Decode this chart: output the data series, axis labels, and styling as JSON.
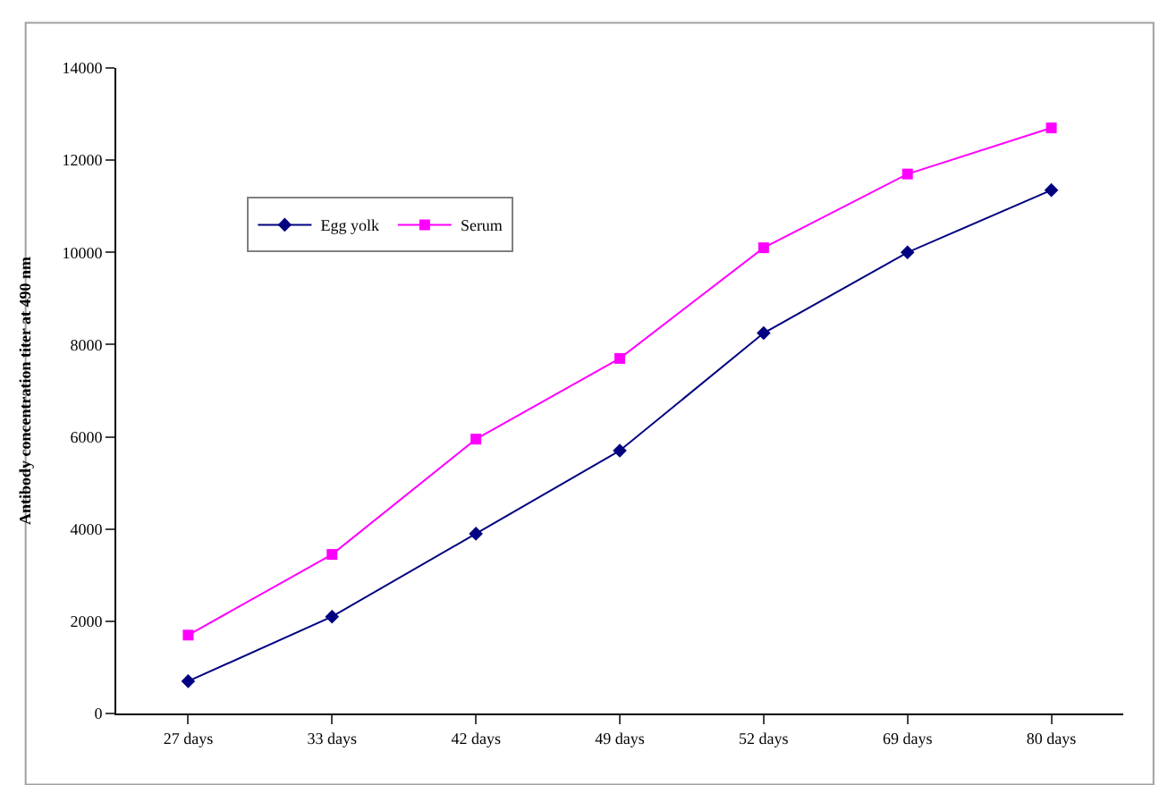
{
  "chart_data": {
    "type": "line",
    "ylabel": "Antibody concentration titer at 490 nm",
    "categories": [
      "27 days",
      "33 days",
      "42 days",
      "49 days",
      "52 days",
      "69 days",
      "80 days"
    ],
    "ylim": [
      0,
      14000
    ],
    "yticks": [
      0,
      2000,
      4000,
      6000,
      8000,
      10000,
      12000,
      14000
    ],
    "legend": "top left",
    "series": [
      {
        "name": "Egg yolk",
        "color": "#000080",
        "marker": "diamond",
        "values": [
          700,
          2100,
          3900,
          5700,
          8250,
          10000,
          11350
        ]
      },
      {
        "name": "Serum",
        "color": "#ff00ff",
        "marker": "square",
        "values": [
          1700,
          3450,
          5950,
          7700,
          10100,
          11700,
          12700
        ]
      }
    ]
  }
}
